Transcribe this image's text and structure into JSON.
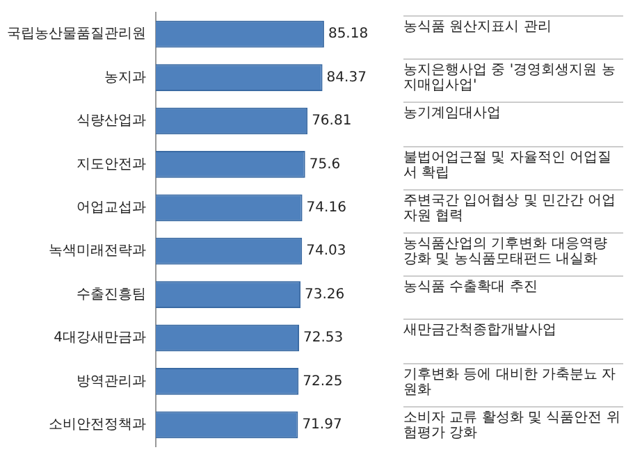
{
  "chart_data": {
    "type": "bar",
    "orientation": "horizontal",
    "categories": [
      "국립농산물품질관리원",
      "농지과",
      "식량산업과",
      "지도안전과",
      "어업교섭과",
      "녹색미래전략과",
      "수출진흥팀",
      "4대강새만금과",
      "방역관리과",
      "소비안전정책과"
    ],
    "values": [
      85.18,
      84.37,
      76.81,
      75.6,
      74.16,
      74.03,
      73.26,
      72.53,
      72.25,
      71.97
    ],
    "color": "#4f81bd",
    "data_labels": true,
    "grid": false,
    "legend": false,
    "tick_labels": "y",
    "annotations": [
      "농식품 원산지표시 관리",
      "농지은행사업 중 '경영회생지원 농지매입사업'",
      "농기계임대사업",
      "불법어업근절 및 자율적인 어업질서 확립",
      "주변국간 입어협상 및 민간간 어업자원 협력",
      "농식품산업의 기후변화 대응역량 강화 및 농식품모태펀드 내실화",
      "농식품 수출확대 추진",
      "새만금간척종합개발사업",
      "기후변화 등에 대비한 가축분뇨 자원화",
      "소비자 교류 활성화 및 식품안전 위험평가 강화"
    ]
  }
}
